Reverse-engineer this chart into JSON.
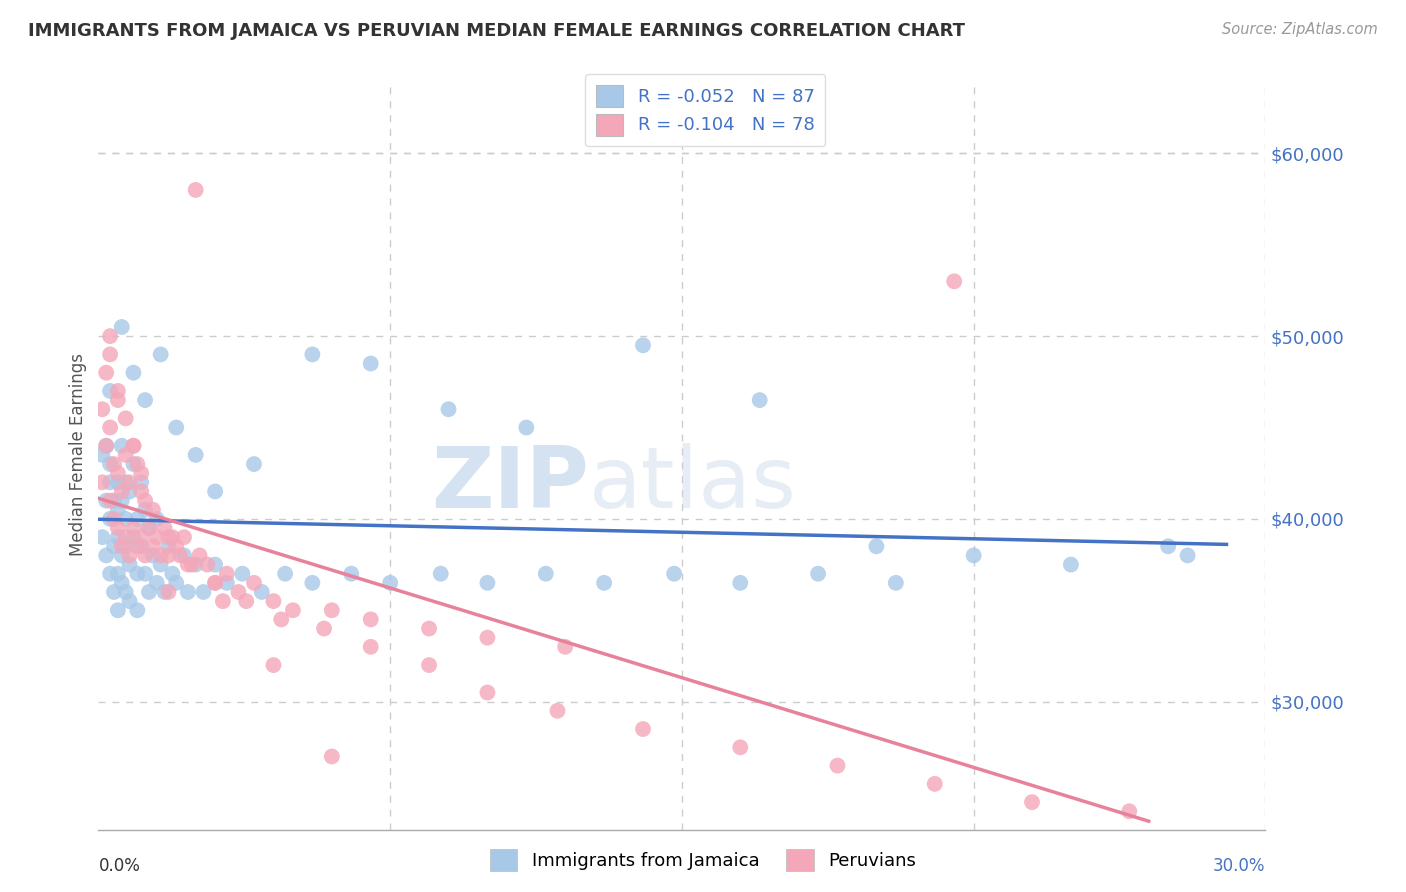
{
  "title": "IMMIGRANTS FROM JAMAICA VS PERUVIAN MEDIAN FEMALE EARNINGS CORRELATION CHART",
  "source": "Source: ZipAtlas.com",
  "ylabel": "Median Female Earnings",
  "xlim": [
    0.0,
    0.3
  ],
  "ylim": [
    23000,
    64000
  ],
  "ytick_vals": [
    30000,
    40000,
    50000,
    60000
  ],
  "ytick_labels": [
    "$30,000",
    "$40,000",
    "$50,000",
    "$60,000"
  ],
  "blue_dot_color": "#a8c8e8",
  "pink_dot_color": "#f4a7b9",
  "blue_line_color": "#4472c4",
  "pink_line_color": "#e8829a",
  "grid_color": "#cccccc",
  "axis_label_color": "#4472c4",
  "R_blue": -0.052,
  "N_blue": 87,
  "R_pink": -0.104,
  "N_pink": 78,
  "watermark_zip": "ZIP",
  "watermark_atlas": "atlas",
  "blue_scatter_x": [
    0.001,
    0.001,
    0.002,
    0.002,
    0.002,
    0.003,
    0.003,
    0.003,
    0.003,
    0.004,
    0.004,
    0.004,
    0.005,
    0.005,
    0.005,
    0.005,
    0.005,
    0.006,
    0.006,
    0.006,
    0.006,
    0.007,
    0.007,
    0.007,
    0.007,
    0.008,
    0.008,
    0.008,
    0.009,
    0.009,
    0.01,
    0.01,
    0.01,
    0.011,
    0.011,
    0.012,
    0.012,
    0.013,
    0.013,
    0.014,
    0.015,
    0.015,
    0.016,
    0.017,
    0.018,
    0.019,
    0.02,
    0.022,
    0.023,
    0.025,
    0.027,
    0.03,
    0.033,
    0.037,
    0.042,
    0.048,
    0.055,
    0.065,
    0.075,
    0.088,
    0.1,
    0.115,
    0.13,
    0.148,
    0.165,
    0.185,
    0.205,
    0.225,
    0.25,
    0.275,
    0.003,
    0.006,
    0.009,
    0.012,
    0.016,
    0.02,
    0.025,
    0.03,
    0.04,
    0.055,
    0.07,
    0.09,
    0.11,
    0.14,
    0.17,
    0.2,
    0.28
  ],
  "blue_scatter_y": [
    39000,
    43500,
    41000,
    44000,
    38000,
    40000,
    43000,
    37000,
    42000,
    38500,
    41000,
    36000,
    39000,
    42000,
    37000,
    40500,
    35000,
    38000,
    41000,
    36500,
    44000,
    38500,
    42000,
    36000,
    40000,
    37500,
    41500,
    35500,
    39000,
    43000,
    37000,
    40000,
    35000,
    38500,
    42000,
    37000,
    40500,
    36000,
    39500,
    38000,
    36500,
    40000,
    37500,
    36000,
    38500,
    37000,
    36500,
    38000,
    36000,
    37500,
    36000,
    37500,
    36500,
    37000,
    36000,
    37000,
    36500,
    37000,
    36500,
    37000,
    36500,
    37000,
    36500,
    37000,
    36500,
    37000,
    36500,
    38000,
    37500,
    38500,
    47000,
    50500,
    48000,
    46500,
    49000,
    45000,
    43500,
    41500,
    43000,
    49000,
    48500,
    46000,
    45000,
    49500,
    46500,
    38500,
    38000
  ],
  "pink_scatter_x": [
    0.001,
    0.001,
    0.002,
    0.002,
    0.003,
    0.003,
    0.003,
    0.004,
    0.004,
    0.005,
    0.005,
    0.005,
    0.006,
    0.006,
    0.007,
    0.007,
    0.008,
    0.008,
    0.009,
    0.009,
    0.01,
    0.01,
    0.011,
    0.011,
    0.012,
    0.012,
    0.013,
    0.014,
    0.015,
    0.016,
    0.017,
    0.018,
    0.019,
    0.02,
    0.021,
    0.022,
    0.024,
    0.026,
    0.028,
    0.03,
    0.033,
    0.036,
    0.04,
    0.045,
    0.05,
    0.06,
    0.07,
    0.085,
    0.1,
    0.12,
    0.003,
    0.005,
    0.007,
    0.009,
    0.011,
    0.014,
    0.018,
    0.023,
    0.03,
    0.038,
    0.047,
    0.058,
    0.07,
    0.085,
    0.1,
    0.118,
    0.14,
    0.165,
    0.19,
    0.215,
    0.24,
    0.265,
    0.025,
    0.018,
    0.032,
    0.045,
    0.06,
    0.22
  ],
  "pink_scatter_y": [
    42000,
    46000,
    44000,
    48000,
    41000,
    45000,
    49000,
    40000,
    43000,
    39500,
    42500,
    46500,
    38500,
    41500,
    39000,
    43500,
    38000,
    42000,
    39500,
    44000,
    38500,
    43000,
    39000,
    41500,
    38000,
    41000,
    39500,
    38500,
    39000,
    38000,
    39500,
    38000,
    39000,
    38500,
    38000,
    39000,
    37500,
    38000,
    37500,
    36500,
    37000,
    36000,
    36500,
    35500,
    35000,
    35000,
    34500,
    34000,
    33500,
    33000,
    50000,
    47000,
    45500,
    44000,
    42500,
    40500,
    39000,
    37500,
    36500,
    35500,
    34500,
    34000,
    33000,
    32000,
    30500,
    29500,
    28500,
    27500,
    26500,
    25500,
    24500,
    24000,
    58000,
    36000,
    35500,
    32000,
    27000,
    53000
  ]
}
